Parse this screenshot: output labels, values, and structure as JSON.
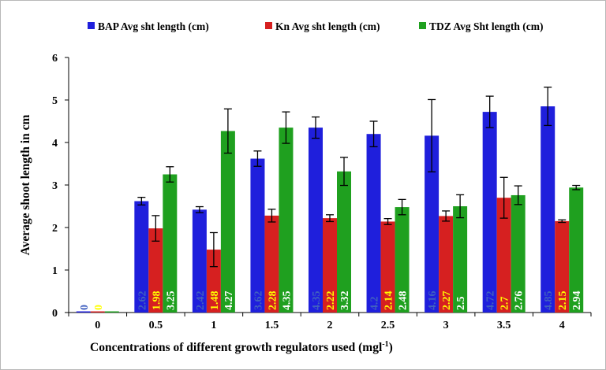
{
  "chart_data": {
    "type": "bar",
    "xlabel": "Concentrations of different growth regulators used (mgl",
    "xlabel_sup": "-1",
    "xlabel_tail": ")",
    "ylabel": "Average shoot length in cm",
    "ylim": [
      0,
      6
    ],
    "yticks": [
      "0",
      "1",
      "2",
      "3",
      "4",
      "5",
      "6"
    ],
    "grid": false,
    "legend_position": "top",
    "categories": [
      "0",
      "0.5",
      "1",
      "1.5",
      "2",
      "2.5",
      "3",
      "3.5",
      "4"
    ],
    "series": [
      {
        "name": "BAP Avg sht length (cm)",
        "color": "#1f1fdc",
        "values": [
          0,
          2.62,
          2.42,
          3.62,
          4.35,
          4.2,
          4.16,
          4.72,
          4.85
        ],
        "errors": [
          0,
          0.09,
          0.07,
          0.18,
          0.25,
          0.3,
          0.85,
          0.37,
          0.45
        ],
        "labels": [
          "0",
          "2.62",
          "2.42",
          "3.62",
          "4.35",
          "4.2",
          "4.16",
          "4.72",
          "4.85"
        ],
        "label_color": "#4060c0"
      },
      {
        "name": "Kn Avg sht length (cm)",
        "color": "#d62020",
        "values": [
          0,
          1.98,
          1.48,
          2.28,
          2.22,
          2.14,
          2.27,
          2.7,
          2.15
        ],
        "errors": [
          0,
          0.3,
          0.4,
          0.15,
          0.08,
          0.07,
          0.12,
          0.48,
          0.03
        ],
        "labels": [
          "0",
          "1.98",
          "1.48",
          "2.28",
          "2.22",
          "2.14",
          "2.27",
          "2.7",
          "2.15"
        ],
        "label_color": "#ffff00"
      },
      {
        "name": "TDZ Avg Sht length (cm)",
        "color": "#1fa01f",
        "values": [
          0,
          3.25,
          4.27,
          4.35,
          3.32,
          2.48,
          2.5,
          2.76,
          2.94
        ],
        "errors": [
          0,
          0.18,
          0.52,
          0.37,
          0.33,
          0.18,
          0.27,
          0.22,
          0.05
        ],
        "labels": [
          "",
          "3.25",
          "4.27",
          "4.35",
          "3.32",
          "2.48",
          "2.5",
          "2.76",
          "2.94"
        ],
        "label_color": "#ffffff"
      }
    ]
  }
}
